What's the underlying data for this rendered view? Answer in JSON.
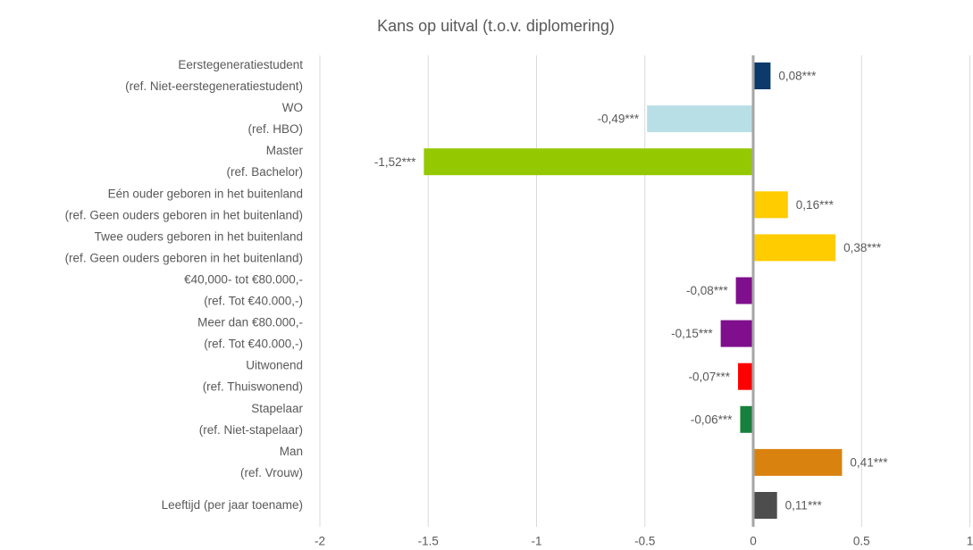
{
  "chart_data": {
    "type": "hbar",
    "title": "Kans op uitval (t.o.v. diplomering)",
    "categories": [
      [
        "Eerstegeneratiestudent",
        "(ref. Niet-eerstegeneratiestudent)"
      ],
      [
        "WO",
        "(ref. HBO)"
      ],
      [
        "Master",
        "(ref. Bachelor)"
      ],
      [
        "Eén ouder geboren in het buitenland",
        "(ref. Geen ouders geboren in het buitenland)"
      ],
      [
        "Twee ouders geboren in het buitenland",
        "(ref. Geen ouders geboren in het buitenland)"
      ],
      [
        "€40,000- tot €80.000,-",
        "(ref. Tot €40.000,-)"
      ],
      [
        "Meer dan €80.000,-",
        "(ref. Tot €40.000,-)"
      ],
      [
        "Uitwonend",
        "(ref. Thuiswonend)"
      ],
      [
        "Stapelaar",
        "(ref. Niet-stapelaar)"
      ],
      [
        "Man",
        "(ref. Vrouw)"
      ],
      [
        "Leeftijd (per jaar toename)"
      ]
    ],
    "values": [
      0.08,
      -0.49,
      -1.52,
      0.16,
      0.38,
      -0.08,
      -0.15,
      -0.07,
      -0.06,
      0.41,
      0.11
    ],
    "value_labels": [
      "0,08***",
      "-0,49***",
      "-1,52***",
      "0,16***",
      "0,38***",
      "-0,08***",
      "-0,15***",
      "-0,07***",
      "-0,06***",
      "0,41***",
      "0,11***"
    ],
    "colors": [
      "#0b3a6b",
      "#b9dfe6",
      "#94c800",
      "#ffcc00",
      "#ffcc00",
      "#7f0f8c",
      "#7f0f8c",
      "#ff0000",
      "#18803e",
      "#d9820f",
      "#4d4d4d"
    ],
    "xlim": [
      -2,
      1
    ],
    "xticks": [
      -2,
      -1.5,
      -1,
      -0.5,
      0,
      0.5,
      1
    ],
    "grid": true
  }
}
